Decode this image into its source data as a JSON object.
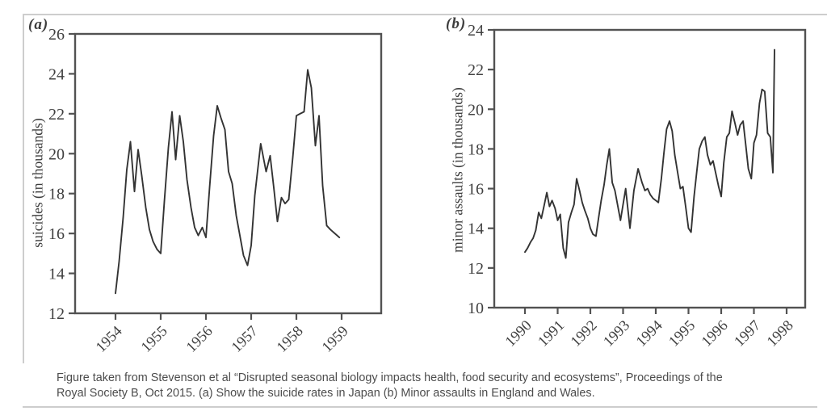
{
  "caption": {
    "line1": "Figure taken from Stevenson et al “Disrupted seasonal biology impacts health, food security and ecosystems”, Proceedings of the",
    "line2": "Royal Society B, Oct 2015. (a) Show the suicide rates in Japan (b) Minor assaults in England and Wales."
  },
  "colors": {
    "axis": "#525252",
    "line": "#333333",
    "tick_text": "#404040",
    "frame": "#cdcdcd",
    "caption_text": "#4c4c4c"
  },
  "chart_data": [
    {
      "type": "line",
      "panel": "(a)",
      "title": "",
      "xlabel": "",
      "ylabel": "suicides (in thousands)",
      "ylim": [
        12,
        26
      ],
      "y_ticks": [
        12,
        14,
        16,
        18,
        20,
        22,
        24,
        26
      ],
      "x_ticks": [
        1954,
        1955,
        1956,
        1957,
        1958,
        1959
      ],
      "x_tick_rotation": 45,
      "grid": false,
      "points": [
        [
          1954.0,
          13.0
        ],
        [
          1954.08,
          14.6
        ],
        [
          1954.17,
          16.8
        ],
        [
          1954.25,
          19.2
        ],
        [
          1954.33,
          20.6
        ],
        [
          1954.42,
          18.1
        ],
        [
          1954.5,
          20.2
        ],
        [
          1954.58,
          18.9
        ],
        [
          1954.67,
          17.3
        ],
        [
          1954.75,
          16.2
        ],
        [
          1954.83,
          15.6
        ],
        [
          1954.92,
          15.2
        ],
        [
          1955.0,
          15.0
        ],
        [
          1955.08,
          17.6
        ],
        [
          1955.17,
          20.3
        ],
        [
          1955.25,
          22.1
        ],
        [
          1955.33,
          19.7
        ],
        [
          1955.42,
          21.9
        ],
        [
          1955.5,
          20.6
        ],
        [
          1955.58,
          18.7
        ],
        [
          1955.67,
          17.3
        ],
        [
          1955.75,
          16.3
        ],
        [
          1955.83,
          15.9
        ],
        [
          1955.92,
          16.3
        ],
        [
          1956.0,
          15.8
        ],
        [
          1956.08,
          18.3
        ],
        [
          1956.17,
          20.9
        ],
        [
          1956.25,
          22.4
        ],
        [
          1956.33,
          21.8
        ],
        [
          1956.42,
          21.2
        ],
        [
          1956.5,
          19.1
        ],
        [
          1956.58,
          18.5
        ],
        [
          1956.67,
          16.9
        ],
        [
          1956.75,
          15.9
        ],
        [
          1956.83,
          14.9
        ],
        [
          1956.92,
          14.4
        ],
        [
          1957.0,
          15.4
        ],
        [
          1957.08,
          17.9
        ],
        [
          1957.21,
          20.5
        ],
        [
          1957.33,
          19.1
        ],
        [
          1957.42,
          19.9
        ],
        [
          1957.5,
          18.3
        ],
        [
          1957.58,
          16.6
        ],
        [
          1957.67,
          17.8
        ],
        [
          1957.75,
          17.5
        ],
        [
          1957.83,
          17.7
        ],
        [
          1957.92,
          19.8
        ],
        [
          1958.0,
          21.9
        ],
        [
          1958.08,
          22.0
        ],
        [
          1958.17,
          22.1
        ],
        [
          1958.25,
          24.2
        ],
        [
          1958.33,
          23.3
        ],
        [
          1958.42,
          20.4
        ],
        [
          1958.5,
          21.9
        ],
        [
          1958.58,
          18.4
        ],
        [
          1958.67,
          16.4
        ],
        [
          1958.75,
          16.2
        ],
        [
          1958.85,
          16.0
        ],
        [
          1958.95,
          15.8
        ]
      ]
    },
    {
      "type": "line",
      "panel": "(b)",
      "title": "",
      "xlabel": "",
      "ylabel": "minor assaults (in thousands)",
      "ylim": [
        10,
        24
      ],
      "y_ticks": [
        10,
        12,
        14,
        16,
        18,
        20,
        22,
        24
      ],
      "x_ticks": [
        1990,
        1991,
        1992,
        1993,
        1994,
        1995,
        1996,
        1997,
        1998
      ],
      "x_tick_rotation": 45,
      "grid": false,
      "points": [
        [
          1990.0,
          12.8
        ],
        [
          1990.08,
          13.0
        ],
        [
          1990.17,
          13.3
        ],
        [
          1990.25,
          13.5
        ],
        [
          1990.33,
          13.9
        ],
        [
          1990.42,
          14.8
        ],
        [
          1990.5,
          14.5
        ],
        [
          1990.58,
          15.1
        ],
        [
          1990.67,
          15.8
        ],
        [
          1990.75,
          15.1
        ],
        [
          1990.83,
          15.4
        ],
        [
          1990.92,
          15.0
        ],
        [
          1991.0,
          14.4
        ],
        [
          1991.08,
          14.7
        ],
        [
          1991.17,
          13.0
        ],
        [
          1991.25,
          12.5
        ],
        [
          1991.33,
          14.3
        ],
        [
          1991.42,
          14.8
        ],
        [
          1991.5,
          15.2
        ],
        [
          1991.58,
          16.5
        ],
        [
          1991.67,
          15.9
        ],
        [
          1991.75,
          15.3
        ],
        [
          1991.83,
          14.9
        ],
        [
          1991.92,
          14.5
        ],
        [
          1992.0,
          14.0
        ],
        [
          1992.08,
          13.7
        ],
        [
          1992.17,
          13.6
        ],
        [
          1992.25,
          14.5
        ],
        [
          1992.33,
          15.4
        ],
        [
          1992.42,
          16.2
        ],
        [
          1992.5,
          17.2
        ],
        [
          1992.58,
          18.0
        ],
        [
          1992.67,
          16.3
        ],
        [
          1992.75,
          15.9
        ],
        [
          1992.83,
          15.2
        ],
        [
          1992.92,
          14.4
        ],
        [
          1993.0,
          15.2
        ],
        [
          1993.08,
          16.0
        ],
        [
          1993.21,
          14.0
        ],
        [
          1993.33,
          15.9
        ],
        [
          1993.46,
          17.0
        ],
        [
          1993.58,
          16.3
        ],
        [
          1993.67,
          15.9
        ],
        [
          1993.75,
          16.0
        ],
        [
          1993.83,
          15.7
        ],
        [
          1993.92,
          15.5
        ],
        [
          1994.0,
          15.4
        ],
        [
          1994.08,
          15.3
        ],
        [
          1994.17,
          16.5
        ],
        [
          1994.25,
          17.8
        ],
        [
          1994.33,
          19.0
        ],
        [
          1994.42,
          19.4
        ],
        [
          1994.5,
          18.9
        ],
        [
          1994.58,
          17.7
        ],
        [
          1994.67,
          16.8
        ],
        [
          1994.75,
          16.0
        ],
        [
          1994.83,
          16.1
        ],
        [
          1994.92,
          15.0
        ],
        [
          1995.0,
          14.0
        ],
        [
          1995.08,
          13.8
        ],
        [
          1995.17,
          15.6
        ],
        [
          1995.25,
          16.8
        ],
        [
          1995.33,
          18.0
        ],
        [
          1995.42,
          18.4
        ],
        [
          1995.5,
          18.6
        ],
        [
          1995.58,
          17.7
        ],
        [
          1995.67,
          17.2
        ],
        [
          1995.75,
          17.4
        ],
        [
          1995.83,
          16.8
        ],
        [
          1995.92,
          16.1
        ],
        [
          1996.0,
          15.6
        ],
        [
          1996.08,
          17.3
        ],
        [
          1996.17,
          18.6
        ],
        [
          1996.25,
          18.8
        ],
        [
          1996.33,
          19.9
        ],
        [
          1996.42,
          19.3
        ],
        [
          1996.5,
          18.7
        ],
        [
          1996.58,
          19.2
        ],
        [
          1996.67,
          19.4
        ],
        [
          1996.75,
          18.2
        ],
        [
          1996.83,
          17.0
        ],
        [
          1996.92,
          16.5
        ],
        [
          1997.0,
          18.3
        ],
        [
          1997.08,
          18.7
        ],
        [
          1997.17,
          20.3
        ],
        [
          1997.25,
          21.0
        ],
        [
          1997.33,
          20.9
        ],
        [
          1997.42,
          18.8
        ],
        [
          1997.5,
          18.6
        ],
        [
          1997.58,
          16.8
        ],
        [
          1997.63,
          23.0
        ]
      ]
    }
  ]
}
